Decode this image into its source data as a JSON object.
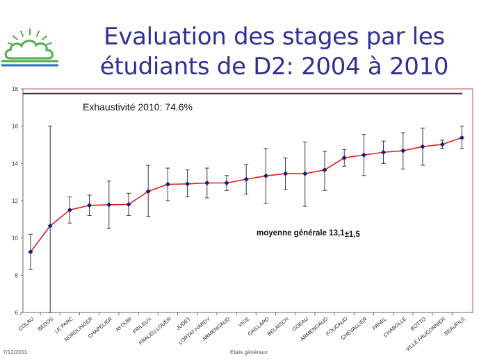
{
  "slide": {
    "title_line1": "Evaluation des stages par les",
    "title_line2": "étudiants de D2: 2004 à 2010",
    "footer_date": "7/12/2011",
    "footer_center": "Etats généraux",
    "logo_icon": "tree-cloud-logo-icon"
  },
  "colors": {
    "title": "#2e3192",
    "line": "#e31b23",
    "marker": "#1b1f7a",
    "frame": "#c0504d",
    "logo_green": "#4daf4a",
    "logo_blue": "#2b6fb5"
  },
  "chart_data": {
    "type": "line",
    "ylim": [
      6,
      18
    ],
    "yticks": [
      6,
      8,
      10,
      12,
      14,
      16,
      18
    ],
    "grid": false,
    "categories": [
      "COLAU",
      "BEDOS",
      "LE PARC",
      "NORDLINGER",
      "CHAPELIER",
      "AYOUBI",
      "FRILEUX",
      "FRALEU LOUER",
      "JUDET",
      "LORTAT-HARDY",
      "ARMENGAUD",
      "VIGE",
      "GAILLARD",
      "BELAISCH",
      "GOEAU",
      "ARMENGAUD",
      "FOUCAUD",
      "CHEVALLIER",
      "PANEL",
      "CHABOLLE",
      "BOTTO",
      "VILLE FAUCONNIER",
      "BEAUFILS"
    ],
    "values": [
      9.25,
      10.65,
      11.5,
      11.75,
      11.78,
      11.8,
      12.5,
      12.88,
      12.9,
      12.95,
      12.95,
      13.15,
      13.33,
      13.45,
      13.45,
      13.65,
      14.3,
      14.45,
      14.6,
      14.68,
      14.9,
      15.02,
      15.38
    ],
    "err_low": [
      8.3,
      6.0,
      10.8,
      11.2,
      10.5,
      11.2,
      11.15,
      12.0,
      12.2,
      12.15,
      12.55,
      12.35,
      11.85,
      12.6,
      11.7,
      12.55,
      13.85,
      13.35,
      14.0,
      13.7,
      13.9,
      14.8,
      14.8
    ],
    "err_high": [
      10.2,
      16.0,
      12.2,
      12.3,
      13.05,
      12.4,
      13.9,
      13.75,
      13.65,
      13.75,
      13.35,
      13.95,
      14.8,
      14.3,
      15.15,
      14.65,
      14.75,
      15.55,
      15.2,
      15.65,
      15.9,
      15.25,
      16.0
    ],
    "reference_line": 17.75,
    "annotations": {
      "exhaustivite": "Exhaustivité 2010: 74.6%",
      "moyenne": "moyenne générale 13,1",
      "moyenne_pm": "±1,5"
    }
  }
}
